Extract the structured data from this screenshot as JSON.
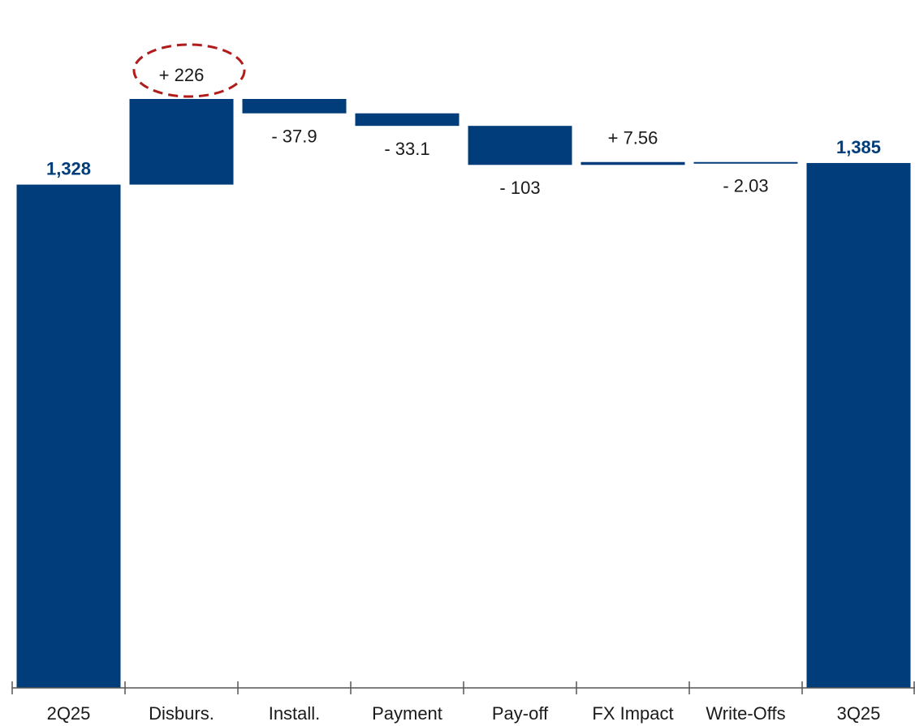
{
  "chart_data": {
    "type": "waterfall",
    "categories": [
      "2Q25",
      "Disburs.",
      "Install.",
      "Payment",
      "Pay-off",
      "FX Impact",
      "Write-Offs",
      "3Q25"
    ],
    "values": [
      1328,
      226,
      -37.9,
      -33.1,
      -103,
      7.56,
      -2.03,
      1385
    ],
    "value_labels": [
      "1,328",
      "+ 226",
      "- 37.9",
      "- 33.1",
      "- 103",
      "+ 7.56",
      "- 2.03",
      "1,385"
    ],
    "color": "#003d7a"
  }
}
